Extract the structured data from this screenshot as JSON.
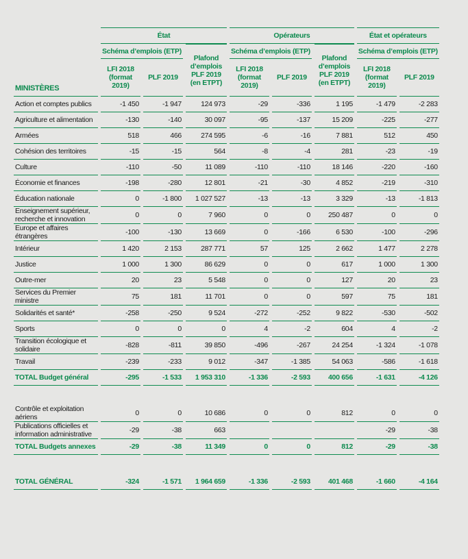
{
  "table": {
    "ministries_label": "MINISTÈRES",
    "groups": [
      "État",
      "Opérateurs",
      "État et opérateurs"
    ],
    "schema_labels": [
      "Schéma d’emplois (ETP)",
      "Schéma d’emplois (ETP)",
      "Schéma d’emplois (ETP)"
    ],
    "columns": [
      "LFI 2018 (format 2019)",
      "PLF 2019",
      "Plafond d’emplois PLF 2019 (en ETPT)",
      "LFI 2018 (format 2019)",
      "PLF 2019",
      "Plafond d’emplois PLF 2019 (en ETPT)",
      "LFI 2018 (format 2019)",
      "PLF 2019"
    ],
    "sections": [
      {
        "rows": [
          [
            "Action et comptes publics",
            "-1 450",
            "-1 947",
            "124 973",
            "-29",
            "-336",
            "1 195",
            "-1 479",
            "-2 283"
          ],
          [
            "Agriculture et alimentation",
            "-130",
            "-140",
            "30 097",
            "-95",
            "-137",
            "15 209",
            "-225",
            "-277"
          ],
          [
            "Armées",
            "518",
            "466",
            "274 595",
            "-6",
            "-16",
            "7 881",
            "512",
            "450"
          ],
          [
            "Cohésion des territoires",
            "-15",
            "-15",
            "564",
            "-8",
            "-4",
            "281",
            "-23",
            "-19"
          ],
          [
            "Culture",
            "-110",
            "-50",
            "11 089",
            "-110",
            "-110",
            "18 146",
            "-220",
            "-160"
          ],
          [
            "Économie et finances",
            "-198",
            "-280",
            "12 801",
            "-21",
            "-30",
            "4 852",
            "-219",
            "-310"
          ],
          [
            "Éducation nationale",
            "0",
            "-1 800",
            "1 027 527",
            "-13",
            "-13",
            "3 329",
            "-13",
            "-1 813"
          ],
          [
            "Enseignement supérieur, recherche et innovation",
            "0",
            "0",
            "7 960",
            "0",
            "0",
            "250 487",
            "0",
            "0"
          ],
          [
            "Europe et affaires étrangères",
            "-100",
            "-130",
            "13 669",
            "0",
            "-166",
            "6 530",
            "-100",
            "-296"
          ],
          [
            "Intérieur",
            "1 420",
            "2 153",
            "287 771",
            "57",
            "125",
            "2 662",
            "1 477",
            "2 278"
          ],
          [
            "Justice",
            "1 000",
            "1 300",
            "86 629",
            "0",
            "0",
            "617",
            "1 000",
            "1 300"
          ],
          [
            "Outre-mer",
            "20",
            "23",
            "5 548",
            "0",
            "0",
            "127",
            "20",
            "23"
          ],
          [
            "Services du Premier ministre",
            "75",
            "181",
            "11 701",
            "0",
            "0",
            "597",
            "75",
            "181"
          ],
          [
            "Solidarités et santé*",
            "-258",
            "-250",
            "9 524",
            "-272",
            "-252",
            "9 822",
            "-530",
            "-502"
          ],
          [
            "Sports",
            "0",
            "0",
            "0",
            "4",
            "-2",
            "604",
            "4",
            "-2"
          ],
          [
            "Transition écologique et solidaire",
            "-828",
            "-811",
            "39 850",
            "-496",
            "-267",
            "24 254",
            "-1 324",
            "-1 078"
          ],
          [
            "Travail",
            "-239",
            "-233",
            "9 012",
            "-347",
            "-1 385",
            "54 063",
            "-586",
            "-1 618"
          ]
        ],
        "total": [
          "TOTAL Budget général",
          "-295",
          "-1 533",
          "1 953 310",
          "-1 336",
          "-2 593",
          "400 656",
          "-1 631",
          "-4 126"
        ]
      },
      {
        "rows": [
          [
            "Contrôle et exploitation aériens",
            "0",
            "0",
            "10 686",
            "0",
            "0",
            "812",
            "0",
            "0"
          ],
          [
            "Publications officielles et information administrative",
            "-29",
            "-38",
            "663",
            null,
            null,
            null,
            "-29",
            "-38"
          ]
        ],
        "total": [
          "TOTAL Budgets annexes",
          "-29",
          "-38",
          "11 349",
          "0",
          "0",
          "812",
          "-29",
          "-38"
        ]
      }
    ],
    "grand_total": [
      "TOTAL GÉNÉRAL",
      "-324",
      "-1 571",
      "1 964 659",
      "-1 336",
      "-2 593",
      "401 468",
      "-1 660",
      "-4 164"
    ]
  }
}
